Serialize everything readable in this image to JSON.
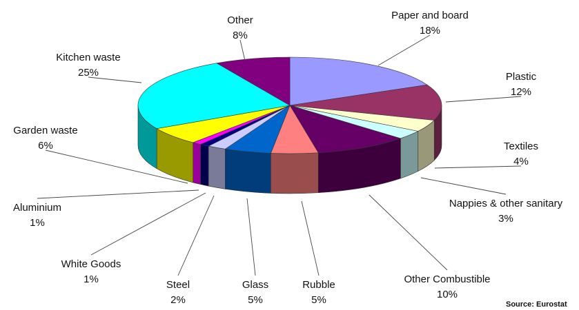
{
  "chart_data": {
    "type": "pie",
    "style": "3d-exploded-none",
    "slices": [
      {
        "name": "Paper and board",
        "value": 18,
        "label": "18%",
        "color": "#9999ff"
      },
      {
        "name": "Plastic",
        "value": 12,
        "label": "12%",
        "color": "#993366"
      },
      {
        "name": "Textiles",
        "value": 4,
        "label": "4%",
        "color": "#ffffcc"
      },
      {
        "name": "Nappies & other sanitary",
        "value": 3,
        "label": "3%",
        "color": "#ccffff"
      },
      {
        "name": "Other Combustible",
        "value": 10,
        "label": "10%",
        "color": "#660066"
      },
      {
        "name": "Rubble",
        "value": 5,
        "label": "5%",
        "color": "#ff8080"
      },
      {
        "name": "Glass",
        "value": 5,
        "label": "5%",
        "color": "#0066cc"
      },
      {
        "name": "Steel",
        "value": 2,
        "label": "2%",
        "color": "#ccccff"
      },
      {
        "name": "White Goods",
        "value": 1,
        "label": "1%",
        "color": "#000080"
      },
      {
        "name": "Aluminium",
        "value": 1,
        "label": "1%",
        "color": "#ff00ff"
      },
      {
        "name": "Garden waste",
        "value": 6,
        "label": "6%",
        "color": "#ffff00"
      },
      {
        "name": "Kitchen waste",
        "value": 25,
        "label": "25%",
        "color": "#00ffff"
      },
      {
        "name": "Other",
        "value": 8,
        "label": "8%",
        "color": "#800080"
      }
    ],
    "source": "Source: Eurostat"
  }
}
